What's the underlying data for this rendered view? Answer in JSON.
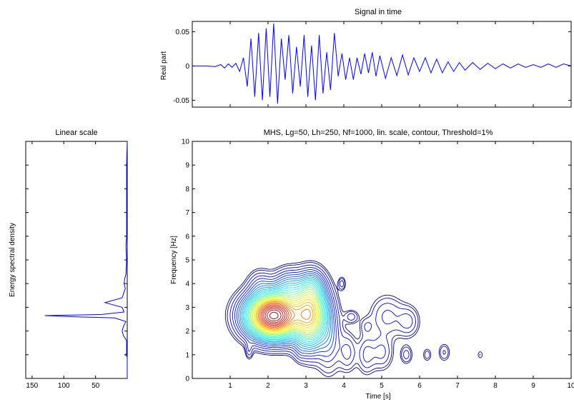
{
  "chart_data": [
    {
      "type": "line",
      "title": "Signal in time",
      "xlabel": "",
      "ylabel": "Real part",
      "ylim": [
        -0.06,
        0.065
      ],
      "yticks": [
        {
          "value": 0.05,
          "label": "0.05"
        },
        {
          "value": 0,
          "label": "0"
        },
        {
          "value": -0.05,
          "label": "-0.05"
        }
      ],
      "xlim": [
        0,
        10
      ],
      "line_color": "#0000ff",
      "series": [
        {
          "x": [
            0,
            0.4,
            0.6,
            0.75,
            0.85,
            0.95,
            1.05,
            1.15,
            1.25,
            1.35,
            1.45,
            1.55,
            1.65,
            1.75,
            1.85,
            1.95,
            2.05,
            2.15,
            2.25,
            2.35,
            2.45,
            2.55,
            2.65,
            2.75,
            2.85,
            2.95,
            3.05,
            3.15,
            3.25,
            3.35,
            3.45,
            3.55,
            3.65,
            3.75,
            3.85,
            3.95,
            4.05,
            4.15,
            4.25,
            4.35,
            4.45,
            4.55,
            4.65,
            4.75,
            4.85,
            4.95,
            5.1,
            5.25,
            5.4,
            5.55,
            5.7,
            5.85,
            6.0,
            6.15,
            6.3,
            6.45,
            6.6,
            6.75,
            6.9,
            7.05,
            7.2,
            7.4,
            7.6,
            7.8,
            8.0,
            8.2,
            8.4,
            8.6,
            8.8,
            9.0,
            9.2,
            9.4,
            9.6,
            9.8,
            10.0
          ],
          "y": [
            0,
            0,
            -0.001,
            0.002,
            -0.003,
            0.003,
            -0.002,
            0.004,
            -0.008,
            0.012,
            -0.03,
            0.04,
            -0.045,
            0.048,
            -0.05,
            0.055,
            -0.045,
            0.062,
            -0.055,
            0.04,
            -0.02,
            0.045,
            -0.04,
            0.028,
            -0.03,
            0.045,
            -0.045,
            0.03,
            -0.05,
            0.045,
            -0.04,
            0.02,
            -0.035,
            0.048,
            -0.015,
            0.018,
            -0.02,
            0.012,
            -0.02,
            0.012,
            -0.012,
            0.018,
            -0.01,
            0.02,
            -0.015,
            0.015,
            -0.018,
            0.012,
            -0.014,
            0.016,
            -0.013,
            0.012,
            -0.008,
            0.012,
            -0.01,
            0.01,
            -0.01,
            0.006,
            -0.008,
            0.005,
            -0.006,
            0.005,
            -0.005,
            0.004,
            -0.004,
            0.003,
            -0.003,
            0.003,
            -0.002,
            0.002,
            -0.002,
            0.003,
            -0.002,
            0.003,
            0.0
          ]
        }
      ]
    },
    {
      "type": "line",
      "title": "Linear scale",
      "xlabel": "",
      "ylabel": "Energy spectral density",
      "xlim": [
        160,
        0
      ],
      "xticks": [
        {
          "value": 150,
          "label": "150"
        },
        {
          "value": 100,
          "label": "100"
        },
        {
          "value": 50,
          "label": "50"
        }
      ],
      "ylim": [
        0,
        10
      ],
      "line_color": "#0000ff",
      "series": [
        {
          "x": [
            0,
            0,
            1,
            3,
            1,
            1,
            6,
            8,
            6,
            2,
            20,
            80,
            130,
            40,
            5,
            8,
            35,
            8,
            3,
            5,
            4,
            2,
            1,
            2,
            1,
            1,
            1,
            1,
            1,
            1,
            0
          ],
          "y": [
            0,
            0.9,
            0.95,
            1.0,
            1.05,
            1.6,
            1.8,
            2.0,
            2.2,
            2.4,
            2.55,
            2.6,
            2.65,
            2.7,
            2.8,
            3.0,
            3.2,
            3.4,
            3.8,
            4.0,
            4.2,
            4.4,
            5.0,
            5.6,
            6.0,
            7.0,
            7.2,
            7.3,
            8.0,
            9.0,
            10.0
          ]
        }
      ]
    },
    {
      "type": "heatmap",
      "subtype": "contour",
      "title": "MHS, Lg=50, Lh=250, Nf=1000, lin. scale, contour, Threshold=1%",
      "xlabel": "Time [s]",
      "ylabel": "Frequency [Hz]",
      "xlim": [
        0,
        10
      ],
      "ylim": [
        0,
        10
      ],
      "xticks": [
        "1",
        "2",
        "3",
        "4",
        "5",
        "6",
        "7",
        "8",
        "9",
        "10"
      ],
      "yticks": [
        "0",
        "1",
        "2",
        "3",
        "4",
        "5",
        "6",
        "7",
        "8",
        "9",
        "10"
      ],
      "colormap": [
        "#00007f",
        "#0000ff",
        "#007fff",
        "#00ffff",
        "#7fff7f",
        "#ffff00",
        "#ff7f00",
        "#ff0000",
        "#7f0000"
      ],
      "components": [
        {
          "t": 2.15,
          "f": 2.65,
          "st": 0.42,
          "sf": 0.55,
          "amp": 1.0
        },
        {
          "t": 3.1,
          "f": 2.7,
          "st": 0.28,
          "sf": 0.75,
          "amp": 0.55
        },
        {
          "t": 2.55,
          "f": 3.8,
          "st": 0.25,
          "sf": 0.45,
          "amp": 0.12
        },
        {
          "t": 3.15,
          "f": 3.8,
          "st": 0.2,
          "sf": 0.45,
          "amp": 0.12
        },
        {
          "t": 1.8,
          "f": 3.9,
          "st": 0.2,
          "sf": 0.4,
          "amp": 0.05
        },
        {
          "t": 3.6,
          "f": 1.6,
          "st": 0.2,
          "sf": 0.8,
          "amp": 0.06
        },
        {
          "t": 1.5,
          "f": 1.2,
          "st": 0.06,
          "sf": 0.25,
          "amp": 0.03
        },
        {
          "t": 3.95,
          "f": 4.0,
          "st": 0.06,
          "sf": 0.18,
          "amp": 0.03
        },
        {
          "t": 3.1,
          "f": 1.6,
          "st": 0.15,
          "sf": 0.5,
          "amp": 0.03
        },
        {
          "t": 4.2,
          "f": 2.6,
          "st": 0.12,
          "sf": 0.18,
          "amp": 0.03
        },
        {
          "t": 2.85,
          "f": 1.2,
          "st": 0.1,
          "sf": 0.3,
          "amp": 0.02
        },
        {
          "t": 4.1,
          "f": 1.1,
          "st": 0.15,
          "sf": 0.5,
          "amp": 0.04
        },
        {
          "t": 4.6,
          "f": 1.0,
          "st": 0.15,
          "sf": 0.5,
          "amp": 0.04
        },
        {
          "t": 5.0,
          "f": 1.1,
          "st": 0.18,
          "sf": 0.45,
          "amp": 0.04
        },
        {
          "t": 4.6,
          "f": 2.2,
          "st": 0.12,
          "sf": 0.25,
          "amp": 0.02
        },
        {
          "t": 5.15,
          "f": 2.6,
          "st": 0.28,
          "sf": 0.55,
          "amp": 0.04
        },
        {
          "t": 5.7,
          "f": 2.4,
          "st": 0.18,
          "sf": 0.4,
          "amp": 0.04
        },
        {
          "t": 5.65,
          "f": 1.0,
          "st": 0.1,
          "sf": 0.25,
          "amp": 0.03
        },
        {
          "t": 6.2,
          "f": 1.0,
          "st": 0.08,
          "sf": 0.2,
          "amp": 0.02
        },
        {
          "t": 6.65,
          "f": 1.1,
          "st": 0.1,
          "sf": 0.25,
          "amp": 0.025
        },
        {
          "t": 7.6,
          "f": 1.0,
          "st": 0.06,
          "sf": 0.15,
          "amp": 0.015
        }
      ]
    }
  ]
}
